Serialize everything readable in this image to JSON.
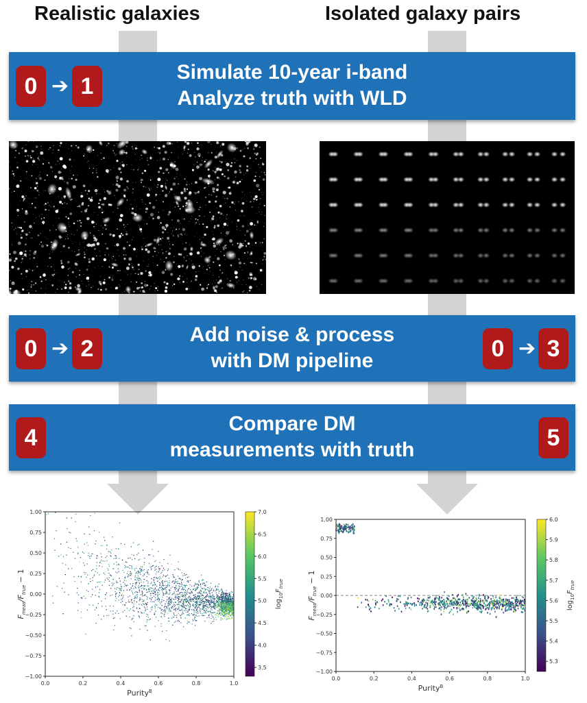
{
  "columns": {
    "left_title": "Realistic galaxies",
    "right_title": "Isolated galaxy pairs"
  },
  "bands": [
    {
      "lines": [
        "Simulate 10-year i-band",
        "Analyze truth with WLD"
      ],
      "badges_left": [
        "0",
        "1"
      ],
      "badges_right": []
    },
    {
      "lines": [
        "Add noise & process",
        "with DM pipeline"
      ],
      "badges_left": [
        "0",
        "2"
      ],
      "badges_right": [
        "0",
        "3"
      ]
    },
    {
      "lines": [
        "Compare DM",
        "measurements with truth"
      ],
      "badges_left": [
        "4"
      ],
      "badges_right": [
        "5"
      ]
    }
  ],
  "arrow_glyph": "➔",
  "chart_data": [
    {
      "type": "scatter",
      "xlabel": "Purity$^{B}$",
      "xlabel_display": "Purity",
      "xlabel_sup": "B",
      "ylabel_display": "F",
      "ylabel_parts": [
        "F",
        "meas",
        "/F",
        "true",
        " − 1"
      ],
      "xlim": [
        0.0,
        1.0
      ],
      "ylim": [
        -1.0,
        1.0
      ],
      "xticks": [
        "0.0",
        "0.2",
        "0.4",
        "0.6",
        "0.8",
        "1.0"
      ],
      "yticks": [
        "1.00",
        "0.75",
        "0.50",
        "0.25",
        "0.00",
        "−0.25",
        "−0.50",
        "−0.75",
        "−1.00"
      ],
      "colorbar": {
        "label_parts": [
          "log",
          "10",
          "F",
          "true"
        ],
        "ticks": [
          "7.0",
          "6.5",
          "6.0",
          "5.5",
          "5.0",
          "4.5",
          "4.0",
          "3.5"
        ],
        "range": [
          3.3,
          7.0
        ]
      },
      "colormap": [
        "#440154",
        "#3b528b",
        "#21918c",
        "#5ec962",
        "#fde725"
      ],
      "point_summary": {
        "count": 2600,
        "trend": {
          "x": [
            0.0,
            0.2,
            0.4,
            0.6,
            0.8,
            1.0
          ],
          "y": [
            0.55,
            0.28,
            0.12,
            0.02,
            -0.06,
            -0.15
          ]
        }
      }
    },
    {
      "type": "scatter",
      "xlim": [
        0.0,
        1.0
      ],
      "ylim": [
        -1.0,
        1.0
      ],
      "xticks": [
        "0.0",
        "0.2",
        "0.4",
        "0.6",
        "0.8",
        "1.0"
      ],
      "yticks": [
        "1.00",
        "0.75",
        "0.50",
        "0.25",
        "0.00",
        "−0.25",
        "−0.50",
        "−0.75",
        "−1.00"
      ],
      "ylabel_parts": [
        "F",
        "meas",
        "/F",
        "true",
        " − 1"
      ],
      "xlabel_display": "Purity",
      "xlabel_sup": "B",
      "colorbar": {
        "label_parts": [
          "log",
          "10",
          "F",
          "true"
        ],
        "ticks": [
          "6.0",
          "5.9",
          "5.8",
          "5.7",
          "5.6",
          "5.5",
          "5.4",
          "5.3"
        ],
        "range": [
          5.25,
          6.0
        ]
      },
      "colormap": [
        "#440154",
        "#3b528b",
        "#21918c",
        "#5ec962",
        "#fde725"
      ],
      "reference_line_y": 0.0,
      "clusters": [
        {
          "x_range": [
            0.0,
            0.1
          ],
          "y_center": 0.88,
          "spread": 0.03
        },
        {
          "x_range": [
            0.1,
            1.0
          ],
          "y_center": -0.11,
          "spread": 0.05
        }
      ]
    }
  ]
}
